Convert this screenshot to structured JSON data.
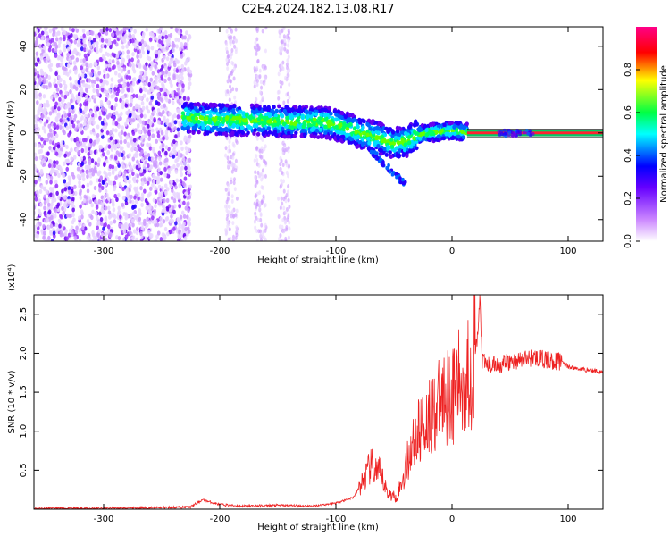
{
  "figure": {
    "title": "C2E4.2024.182.13.08.R17"
  },
  "chart_data": [
    {
      "type": "heatmap",
      "xlabel": "Height of straight line (km)",
      "ylabel": "Frequency (Hz)",
      "xlim": [
        -360,
        130
      ],
      "ylim": [
        -50,
        49
      ],
      "xticks": [
        -300,
        -200,
        -100,
        0,
        100
      ],
      "yticks": [
        -40,
        -20,
        0,
        20,
        40
      ],
      "colorbar": {
        "label": "Normalized spectral amplitude",
        "range": [
          0,
          1
        ],
        "ticks": [
          0.0,
          0.2,
          0.4,
          0.6,
          0.8
        ],
        "colors": [
          "#ffffff",
          "#9900ff",
          "#0000ff",
          "#00ffff",
          "#00ff00",
          "#ffff00",
          "#ff0000",
          "#ff0080"
        ]
      },
      "ridge": [
        {
          "x": -230,
          "y": 7
        },
        {
          "x": -200,
          "y": 6
        },
        {
          "x": -170,
          "y": 6
        },
        {
          "x": -140,
          "y": 5
        },
        {
          "x": -110,
          "y": 5
        },
        {
          "x": -95,
          "y": 3
        },
        {
          "x": -80,
          "y": 0
        },
        {
          "x": -65,
          "y": -2
        },
        {
          "x": -50,
          "y": -5
        },
        {
          "x": -40,
          "y": -4
        },
        {
          "x": -30,
          "y": -1
        },
        {
          "x": -20,
          "y": 0
        },
        {
          "x": 0,
          "y": 1
        },
        {
          "x": 15,
          "y": 0
        },
        {
          "x": 130,
          "y": 0
        }
      ]
    },
    {
      "type": "line",
      "xlabel": "Height of straight line (km)",
      "ylabel": "SNR (10 * v/v)",
      "yscale_label": "(x10⁴)",
      "xlim": [
        -360,
        130
      ],
      "ylim": [
        0,
        2.75
      ],
      "xticks": [
        -300,
        -200,
        -100,
        0,
        100
      ],
      "yticks": [
        0.5,
        1.0,
        1.5,
        2.0,
        2.5
      ],
      "color": "#ee2222",
      "series": [
        {
          "x": [
            -360,
            -300,
            -250,
            -225,
            -215,
            -200,
            -180,
            -150,
            -120,
            -100,
            -85,
            -75,
            -70,
            -62,
            -55,
            -48,
            -42,
            -35,
            -28,
            -20,
            -12,
            -6,
            0,
            6,
            12,
            18,
            22,
            24,
            26,
            30,
            40,
            55,
            70,
            85,
            95,
            100,
            110,
            120,
            130
          ],
          "y": [
            0.01,
            0.01,
            0.02,
            0.03,
            0.12,
            0.06,
            0.04,
            0.05,
            0.04,
            0.08,
            0.15,
            0.4,
            0.55,
            0.45,
            0.2,
            0.15,
            0.4,
            0.8,
            1.0,
            1.2,
            1.3,
            1.5,
            1.45,
            1.6,
            1.7,
            1.85,
            2.2,
            2.7,
            1.9,
            1.85,
            1.85,
            1.9,
            1.95,
            1.9,
            1.9,
            1.82,
            1.8,
            1.78,
            1.76
          ]
        }
      ]
    }
  ]
}
